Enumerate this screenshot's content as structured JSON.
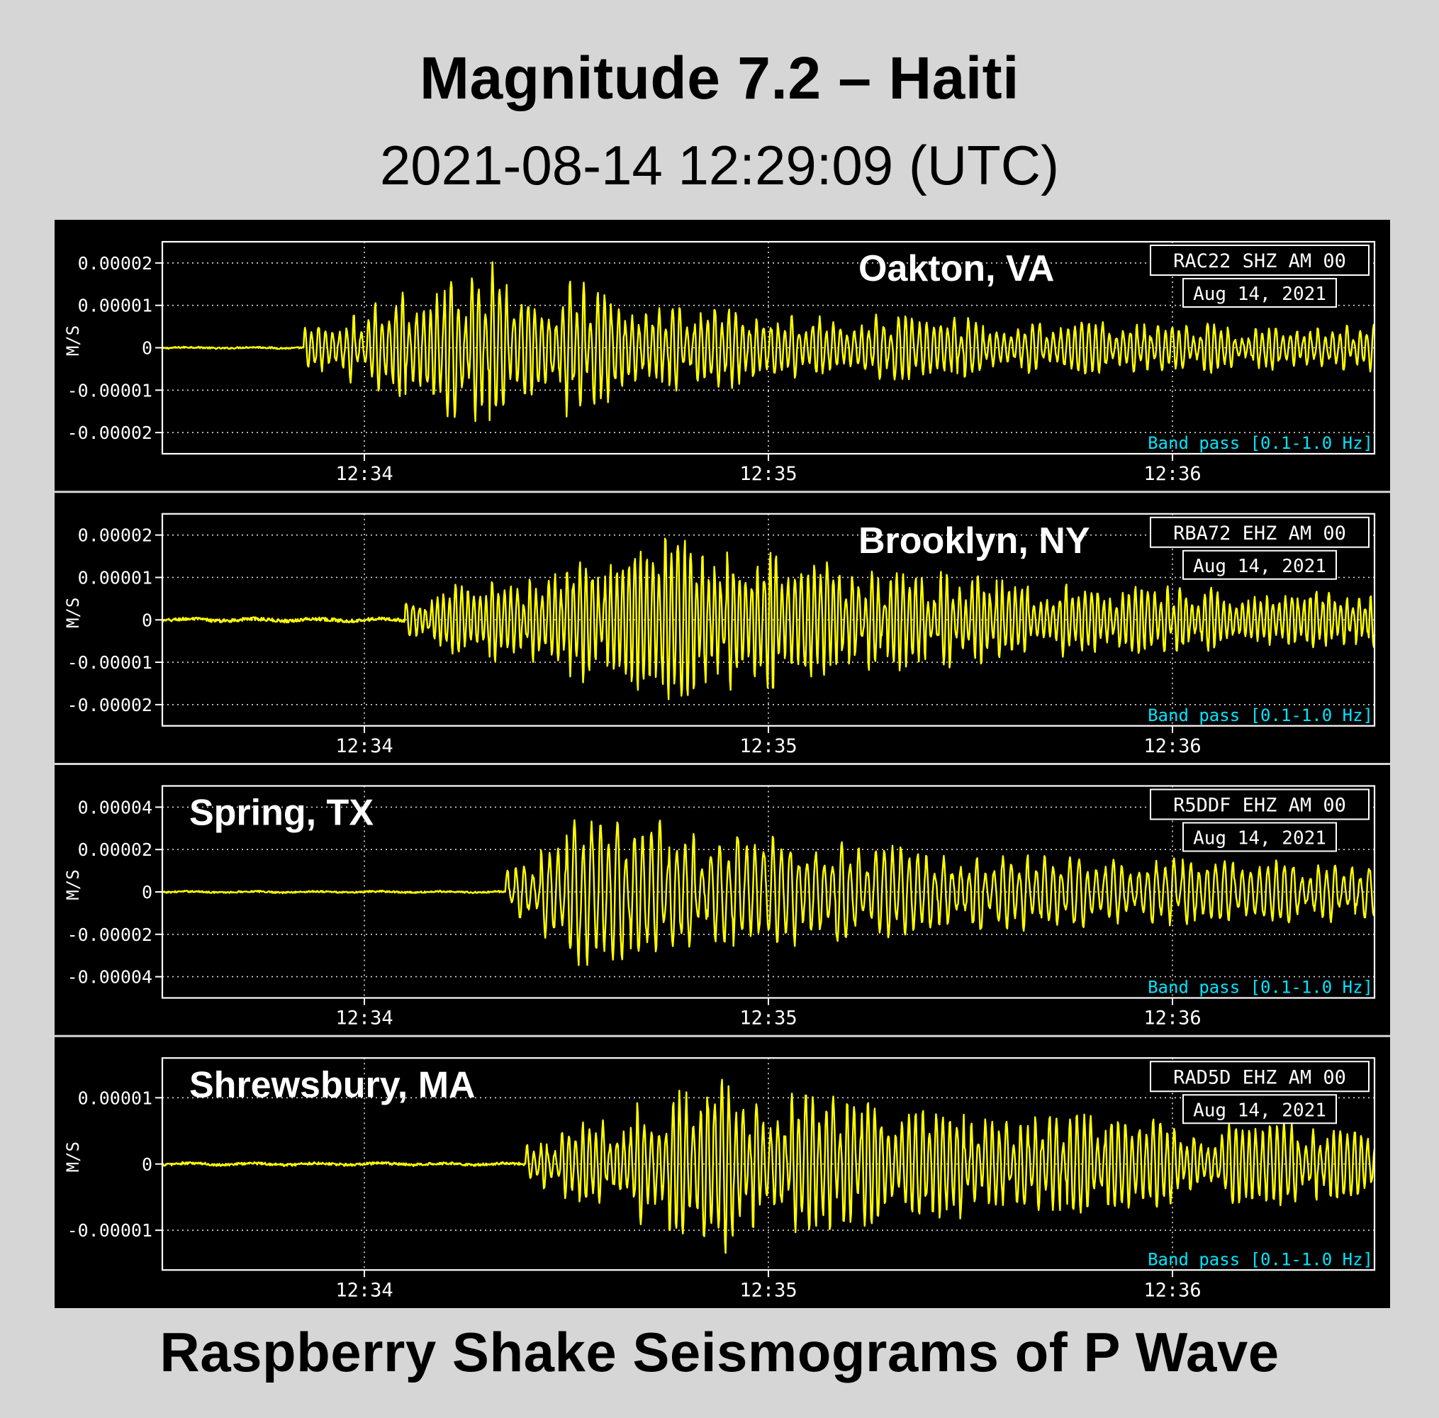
{
  "title": "Magnitude 7.2 – Haiti",
  "subtitle": "2021-08-14 12:29:09 (UTC)",
  "footer": "Raspberry Shake Seismograms of P Wave",
  "colors": {
    "background": "#d6d6d6",
    "panel": "#000000",
    "trace": "#ffff00",
    "filter_text": "#00e5ff",
    "frame": "#ffffff",
    "station_label": "#ffffff"
  },
  "chart_data": [
    {
      "type": "line",
      "location": "Oakton, VA",
      "station": "RAC22 SHZ AM 00",
      "date": "Aug 14, 2021",
      "filter": "Band pass [0.1-1.0 Hz]",
      "ylabel": "M/S",
      "x_ticks": [
        "12:34",
        "12:35",
        "12:36"
      ],
      "x_tick_minutes": [
        0,
        1,
        2
      ],
      "xlim_minutes": [
        -0.5,
        2.5
      ],
      "y_ticks": [
        2e-05,
        1e-05,
        0,
        -1e-05,
        -2e-05
      ],
      "y_tick_labels": [
        "0.00002",
        "0.00001",
        "0",
        "-0.00001",
        "-0.00002"
      ],
      "ylim": [
        -2.5e-05,
        2.5e-05
      ],
      "grid": true,
      "label_position": "top-center",
      "signal": {
        "onset_minutes": -0.15,
        "peak_amplitude": 1.8e-05,
        "peak_time_minutes": 0.3,
        "late_amplitude": 4.5e-06,
        "noise_amplitude": 2e-07,
        "frequency_per_minute": 55
      }
    },
    {
      "type": "line",
      "location": "Brooklyn, NY",
      "station": "RBA72 EHZ AM 00",
      "date": "Aug 14, 2021",
      "filter": "Band pass [0.1-1.0 Hz]",
      "ylabel": "M/S",
      "x_ticks": [
        "12:34",
        "12:35",
        "12:36"
      ],
      "x_tick_minutes": [
        0,
        1,
        2
      ],
      "xlim_minutes": [
        -0.5,
        2.5
      ],
      "y_ticks": [
        2e-05,
        1e-05,
        0,
        -1e-05,
        -2e-05
      ],
      "y_tick_labels": [
        "0.00002",
        "0.00001",
        "0",
        "-0.00001",
        "-0.00002"
      ],
      "ylim": [
        -2.5e-05,
        2.5e-05
      ],
      "grid": true,
      "label_position": "top-center",
      "signal": {
        "onset_minutes": 0.1,
        "peak_amplitude": 1.9e-05,
        "peak_time_minutes": 0.8,
        "late_amplitude": 6e-06,
        "noise_amplitude": 4e-07,
        "frequency_per_minute": 62
      }
    },
    {
      "type": "line",
      "location": "Spring, TX",
      "station": "R5DDF EHZ AM 00",
      "date": "Aug 14, 2021",
      "filter": "Band pass [0.1-1.0 Hz]",
      "ylabel": "M/S",
      "x_ticks": [
        "12:34",
        "12:35",
        "12:36"
      ],
      "x_tick_minutes": [
        0,
        1,
        2
      ],
      "xlim_minutes": [
        -0.5,
        2.5
      ],
      "y_ticks": [
        4e-05,
        2e-05,
        0,
        -2e-05,
        -4e-05
      ],
      "y_tick_labels": [
        "0.00004",
        "0.00002",
        "0",
        "-0.00002",
        "-0.00004"
      ],
      "ylim": [
        -5e-05,
        5e-05
      ],
      "grid": true,
      "label_position": "top-left",
      "signal": {
        "onset_minutes": 0.35,
        "peak_amplitude": 3.7e-05,
        "peak_time_minutes": 0.55,
        "late_amplitude": 1.2e-05,
        "noise_amplitude": 4e-07,
        "frequency_per_minute": 45
      }
    },
    {
      "type": "line",
      "location": "Shrewsbury, MA",
      "station": "RAD5D EHZ AM 00",
      "date": "Aug 14, 2021",
      "filter": "Band pass [0.1-1.0 Hz]",
      "ylabel": "M/S",
      "x_ticks": [
        "12:34",
        "12:35",
        "12:36"
      ],
      "x_tick_minutes": [
        0,
        1,
        2
      ],
      "xlim_minutes": [
        -0.5,
        2.5
      ],
      "y_ticks": [
        1e-05,
        0,
        -1e-05
      ],
      "y_tick_labels": [
        "0.00001",
        "0",
        "-0.00001"
      ],
      "ylim": [
        -1.6e-05,
        1.6e-05
      ],
      "grid": true,
      "label_position": "top-left",
      "signal": {
        "onset_minutes": 0.4,
        "peak_amplitude": 1.25e-05,
        "peak_time_minutes": 0.85,
        "late_amplitude": 5e-06,
        "noise_amplitude": 2e-07,
        "frequency_per_minute": 55
      }
    }
  ]
}
